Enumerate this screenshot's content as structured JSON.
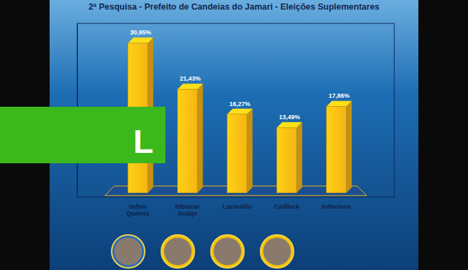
{
  "chart_data": {
    "type": "bar",
    "title": "2ª Pesquisa - Prefeito de Candeias do Jamari - Eleições Suplementares",
    "categories": [
      "Valteir Queiroz",
      "Ribamar Araújo",
      "Lucivaldo",
      "Cadilack",
      "Indecisos"
    ],
    "values": [
      30.95,
      21.43,
      16.27,
      13.49,
      17.86
    ],
    "value_labels": [
      "30,95%",
      "21,43%",
      "16,27%",
      "13,49%",
      "17,86%"
    ],
    "color": "#f5b512",
    "ylim": [
      0,
      35
    ],
    "data_labels": true,
    "tick_labels": "x"
  },
  "logo_text": "L"
}
